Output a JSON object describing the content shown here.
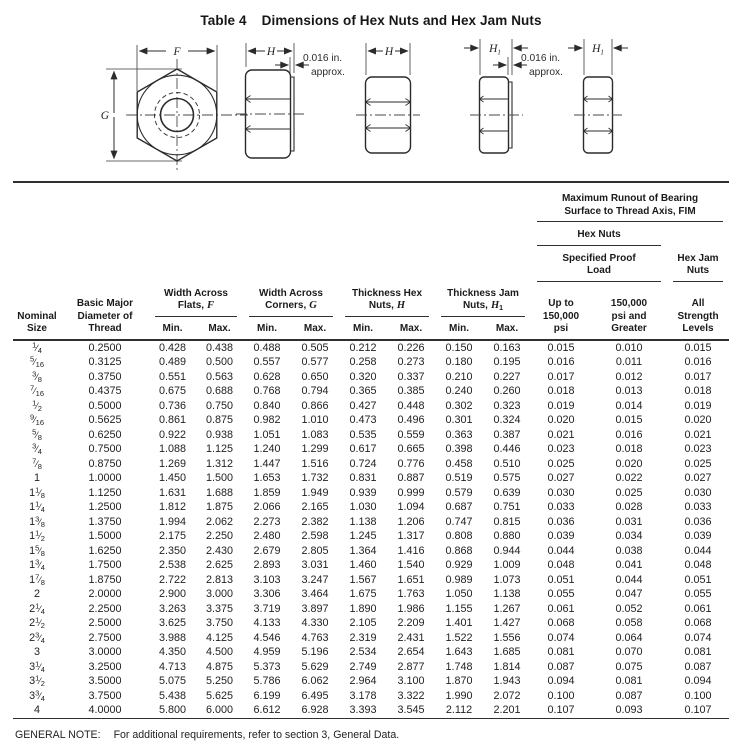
{
  "title": {
    "label": "Table 4",
    "text": "Dimensions of Hex Nuts and Hex Jam Nuts"
  },
  "diagram": {
    "f_label": "F",
    "g_label": "G",
    "h_label": "H",
    "h1_main": "H",
    "h1_sub": "1",
    "offset_line1": "0.016 in.",
    "offset_line2": "approx."
  },
  "table": {
    "header": {
      "runout": "Maximum Runout of Bearing\nSurface to Thread Axis, FIM",
      "hex_nuts": "Hex Nuts",
      "specified_proof_load": "Specified Proof\nLoad",
      "hex_jam_nuts": "Hex Jam\nNuts",
      "nominal_size": "Nominal\nSize",
      "basic_major_diameter": "Basic Major\nDiameter of\nThread",
      "width_across_flats": {
        "line1": "Width Across",
        "line2": "Flats,",
        "symbol": "F"
      },
      "width_across_corners": {
        "line1": "Width Across",
        "line2": "Corners,",
        "symbol": "G"
      },
      "thickness_hex_nuts": {
        "line1": "Thickness Hex",
        "line2": "Nuts,",
        "symbol": "H"
      },
      "thickness_jam_nuts": {
        "line1": "Thickness Jam",
        "line2": "Nuts,",
        "symbol": "H",
        "subscript": "1"
      },
      "min_label": "Min.",
      "max_label": "Max.",
      "up_to_psi": "Up to\n150,000\npsi",
      "psi_and_greater": "150,000\npsi and\nGreater",
      "all_strength_levels": "All\nStrength\nLevels"
    },
    "rows": [
      [
        "1/4",
        "0.2500",
        "0.428",
        "0.438",
        "0.488",
        "0.505",
        "0.212",
        "0.226",
        "0.150",
        "0.163",
        "0.015",
        "0.010",
        "0.015"
      ],
      [
        "5/16",
        "0.3125",
        "0.489",
        "0.500",
        "0.557",
        "0.577",
        "0.258",
        "0.273",
        "0.180",
        "0.195",
        "0.016",
        "0.011",
        "0.016"
      ],
      [
        "3/8",
        "0.3750",
        "0.551",
        "0.563",
        "0.628",
        "0.650",
        "0.320",
        "0.337",
        "0.210",
        "0.227",
        "0.017",
        "0.012",
        "0.017"
      ],
      [
        "7/16",
        "0.4375",
        "0.675",
        "0.688",
        "0.768",
        "0.794",
        "0.365",
        "0.385",
        "0.240",
        "0.260",
        "0.018",
        "0.013",
        "0.018"
      ],
      [
        "1/2",
        "0.5000",
        "0.736",
        "0.750",
        "0.840",
        "0.866",
        "0.427",
        "0.448",
        "0.302",
        "0.323",
        "0.019",
        "0.014",
        "0.019"
      ],
      [
        "9/16",
        "0.5625",
        "0.861",
        "0.875",
        "0.982",
        "1.010",
        "0.473",
        "0.496",
        "0.301",
        "0.324",
        "0.020",
        "0.015",
        "0.020"
      ],
      [
        "5/8",
        "0.6250",
        "0.922",
        "0.938",
        "1.051",
        "1.083",
        "0.535",
        "0.559",
        "0.363",
        "0.387",
        "0.021",
        "0.016",
        "0.021"
      ],
      [
        "3/4",
        "0.7500",
        "1.088",
        "1.125",
        "1.240",
        "1.299",
        "0.617",
        "0.665",
        "0.398",
        "0.446",
        "0.023",
        "0.018",
        "0.023"
      ],
      [
        "7/8",
        "0.8750",
        "1.269",
        "1.312",
        "1.447",
        "1.516",
        "0.724",
        "0.776",
        "0.458",
        "0.510",
        "0.025",
        "0.020",
        "0.025"
      ],
      [
        "1",
        "1.0000",
        "1.450",
        "1.500",
        "1.653",
        "1.732",
        "0.831",
        "0.887",
        "0.519",
        "0.575",
        "0.027",
        "0.022",
        "0.027"
      ],
      [
        "1 1/8",
        "1.1250",
        "1.631",
        "1.688",
        "1.859",
        "1.949",
        "0.939",
        "0.999",
        "0.579",
        "0.639",
        "0.030",
        "0.025",
        "0.030"
      ],
      [
        "1 1/4",
        "1.2500",
        "1.812",
        "1.875",
        "2.066",
        "2.165",
        "1.030",
        "1.094",
        "0.687",
        "0.751",
        "0.033",
        "0.028",
        "0.033"
      ],
      [
        "1 3/8",
        "1.3750",
        "1.994",
        "2.062",
        "2.273",
        "2.382",
        "1.138",
        "1.206",
        "0.747",
        "0.815",
        "0.036",
        "0.031",
        "0.036"
      ],
      [
        "1 1/2",
        "1.5000",
        "2.175",
        "2.250",
        "2.480",
        "2.598",
        "1.245",
        "1.317",
        "0.808",
        "0.880",
        "0.039",
        "0.034",
        "0.039"
      ],
      [
        "1 5/8",
        "1.6250",
        "2.350",
        "2.430",
        "2.679",
        "2.805",
        "1.364",
        "1.416",
        "0.868",
        "0.944",
        "0.044",
        "0.038",
        "0.044"
      ],
      [
        "1 3/4",
        "1.7500",
        "2.538",
        "2.625",
        "2.893",
        "3.031",
        "1.460",
        "1.540",
        "0.929",
        "1.009",
        "0.048",
        "0.041",
        "0.048"
      ],
      [
        "1 7/8",
        "1.8750",
        "2.722",
        "2.813",
        "3.103",
        "3.247",
        "1.567",
        "1.651",
        "0.989",
        "1.073",
        "0.051",
        "0.044",
        "0.051"
      ],
      [
        "2",
        "2.0000",
        "2.900",
        "3.000",
        "3.306",
        "3.464",
        "1.675",
        "1.763",
        "1.050",
        "1.138",
        "0.055",
        "0.047",
        "0.055"
      ],
      [
        "2 1/4",
        "2.2500",
        "3.263",
        "3.375",
        "3.719",
        "3.897",
        "1.890",
        "1.986",
        "1.155",
        "1.267",
        "0.061",
        "0.052",
        "0.061"
      ],
      [
        "2 1/2",
        "2.5000",
        "3.625",
        "3.750",
        "4.133",
        "4.330",
        "2.105",
        "2.209",
        "1.401",
        "1.427",
        "0.068",
        "0.058",
        "0.068"
      ],
      [
        "2 3/4",
        "2.7500",
        "3.988",
        "4.125",
        "4.546",
        "4.763",
        "2.319",
        "2.431",
        "1.522",
        "1.556",
        "0.074",
        "0.064",
        "0.074"
      ],
      [
        "3",
        "3.0000",
        "4.350",
        "4.500",
        "4.959",
        "5.196",
        "2.534",
        "2.654",
        "1.643",
        "1.685",
        "0.081",
        "0.070",
        "0.081"
      ],
      [
        "3 1/4",
        "3.2500",
        "4.713",
        "4.875",
        "5.373",
        "5.629",
        "2.749",
        "2.877",
        "1.748",
        "1.814",
        "0.087",
        "0.075",
        "0.087"
      ],
      [
        "3 1/2",
        "3.5000",
        "5.075",
        "5.250",
        "5.786",
        "6.062",
        "2.964",
        "3.100",
        "1.870",
        "1.943",
        "0.094",
        "0.081",
        "0.094"
      ],
      [
        "3 3/4",
        "3.7500",
        "5.438",
        "5.625",
        "6.199",
        "6.495",
        "3.178",
        "3.322",
        "1.990",
        "2.072",
        "0.100",
        "0.087",
        "0.100"
      ],
      [
        "4",
        "4.0000",
        "5.800",
        "6.000",
        "6.612",
        "6.928",
        "3.393",
        "3.545",
        "2.112",
        "2.201",
        "0.107",
        "0.093",
        "0.107"
      ]
    ]
  },
  "footer": {
    "label": "GENERAL NOTE:",
    "text": "For additional requirements, refer to section 3, General Data."
  }
}
